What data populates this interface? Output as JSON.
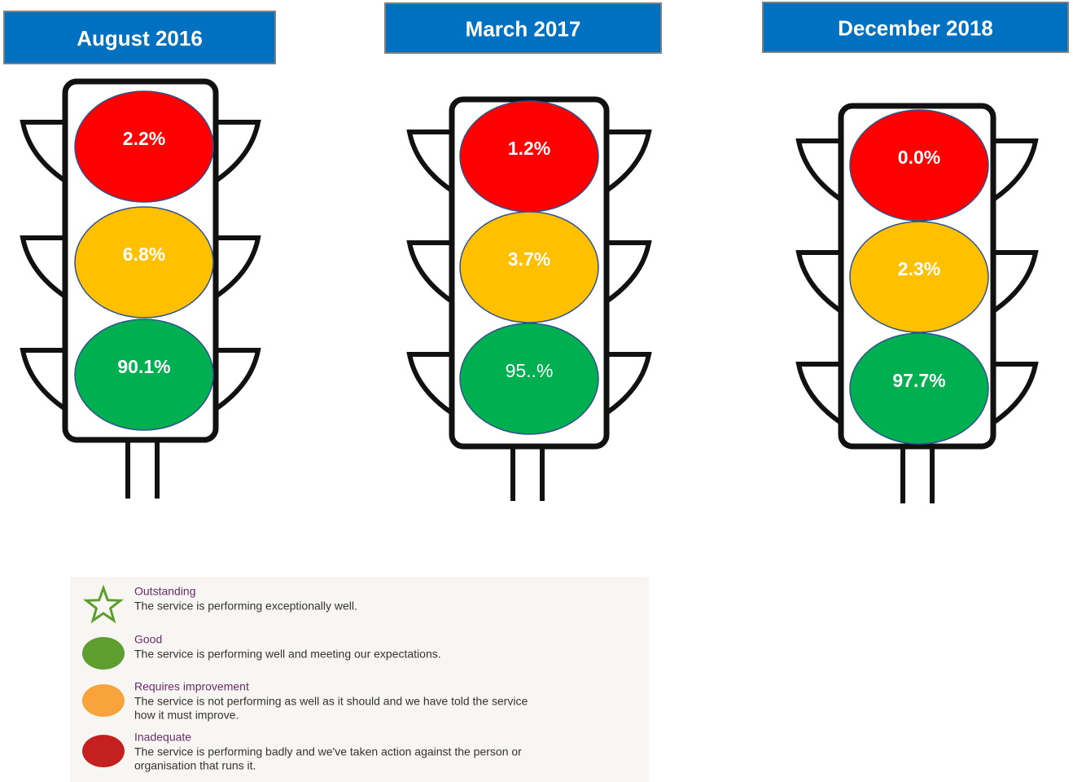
{
  "panels": [
    {
      "title": "August 2016",
      "red": "2.2%",
      "amber": "6.8%",
      "green": "90.1%"
    },
    {
      "title": "March 2017",
      "red": "1.2%",
      "amber": "3.7%",
      "green": "95..%"
    },
    {
      "title": "December 2018",
      "red": "0.0%",
      "amber": "2.3%",
      "green": "97.7%"
    }
  ],
  "legend": [
    {
      "title": "Outstanding",
      "description": [
        "The service is performing exceptionally well."
      ]
    },
    {
      "title": "Good",
      "description": [
        "The service is performing well and meeting our expectations."
      ]
    },
    {
      "title": "Requires improvement",
      "description": [
        "The service is not performing as well as it should and we have told the service",
        "how it must improve."
      ]
    },
    {
      "title": "Inadequate",
      "description": [
        "The service is performing badly and we've taken action against the person or",
        "organisation that runs it."
      ]
    }
  ]
}
